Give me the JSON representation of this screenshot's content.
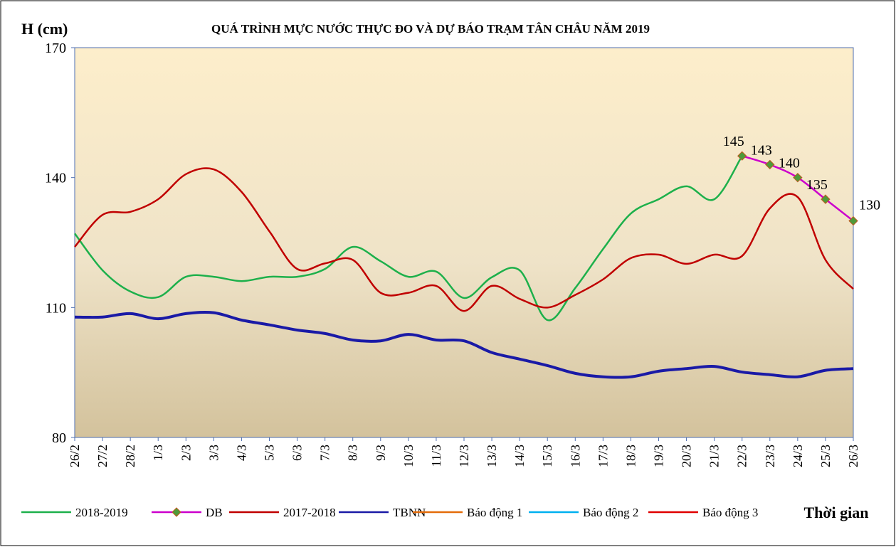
{
  "chart_data": {
    "type": "line",
    "title": "QUÁ TRÌNH MỰC NƯỚC THỰC ĐO VÀ DỰ BÁO TRẠM TÂN CHÂU NĂM 2019",
    "y_label": "H (cm)",
    "x_label": "Thời gian",
    "categories": [
      "26/2",
      "27/2",
      "28/2",
      "1/3",
      "2/3",
      "3/3",
      "4/3",
      "5/3",
      "6/3",
      "7/3",
      "8/3",
      "9/3",
      "10/3",
      "11/3",
      "12/3",
      "13/3",
      "14/3",
      "15/3",
      "16/3",
      "17/3",
      "18/3",
      "19/3",
      "20/3",
      "21/3",
      "22/3",
      "23/3",
      "24/3",
      "25/3",
      "26/3"
    ],
    "ylim": [
      80,
      170
    ],
    "yticks": [
      80,
      110,
      140,
      170
    ],
    "series": [
      {
        "name": "2018-2019",
        "color": "#1db04b",
        "values": [
          127.1,
          118.6,
          113.7,
          112.4,
          117.1,
          117.1,
          116.1,
          117.1,
          117.1,
          118.9,
          124.0,
          120.7,
          117.1,
          118.3,
          112.2,
          117.0,
          118.6,
          107.1,
          114.5,
          123.5,
          131.7,
          135.0,
          138.0,
          135.0,
          145,
          null,
          null,
          null,
          null
        ]
      },
      {
        "name": "DB",
        "color": "#cc00cc",
        "marker_color": "#4e9a3a",
        "values": [
          null,
          null,
          null,
          null,
          null,
          null,
          null,
          null,
          null,
          null,
          null,
          null,
          null,
          null,
          null,
          null,
          null,
          null,
          null,
          null,
          null,
          null,
          null,
          null,
          145,
          143,
          140,
          135,
          130
        ]
      },
      {
        "name": "2017-2018",
        "color": "#c00000",
        "values": [
          124.0,
          131.4,
          132.1,
          135.0,
          140.8,
          141.9,
          136.7,
          127.6,
          118.9,
          120.2,
          121.0,
          113.4,
          113.4,
          115.0,
          109.2,
          115.0,
          112.0,
          110.0,
          112.9,
          116.5,
          121.4,
          122.2,
          120.1,
          122.2,
          121.9,
          132.9,
          135.5,
          121.0,
          114.3
        ]
      },
      {
        "name": "TBNN",
        "color": "#1a1aa6",
        "values": [
          107.8,
          107.8,
          108.6,
          107.4,
          108.6,
          108.8,
          107.1,
          106.0,
          104.8,
          104.0,
          102.5,
          102.3,
          103.8,
          102.5,
          102.3,
          99.6,
          98.1,
          96.6,
          94.8,
          94.0,
          94.0,
          95.3,
          95.9,
          96.4,
          95.1,
          94.5,
          94.0,
          95.5,
          95.9
        ]
      },
      {
        "name": "Báo động 1",
        "color": "#e46c0a",
        "values": [
          null,
          null,
          null,
          null,
          null,
          null,
          null,
          null,
          null,
          null,
          null,
          null,
          null,
          null,
          null,
          null,
          null,
          null,
          null,
          null,
          null,
          null,
          null,
          null,
          null,
          null,
          null,
          null,
          null
        ]
      },
      {
        "name": "Báo động 2",
        "color": "#00b0f0",
        "values": [
          null,
          null,
          null,
          null,
          null,
          null,
          null,
          null,
          null,
          null,
          null,
          null,
          null,
          null,
          null,
          null,
          null,
          null,
          null,
          null,
          null,
          null,
          null,
          null,
          null,
          null,
          null,
          null,
          null
        ]
      },
      {
        "name": "Báo động 3",
        "color": "#e00000",
        "values": [
          null,
          null,
          null,
          null,
          null,
          null,
          null,
          null,
          null,
          null,
          null,
          null,
          null,
          null,
          null,
          null,
          null,
          null,
          null,
          null,
          null,
          null,
          null,
          null,
          null,
          null,
          null,
          null,
          null
        ]
      }
    ]
  }
}
